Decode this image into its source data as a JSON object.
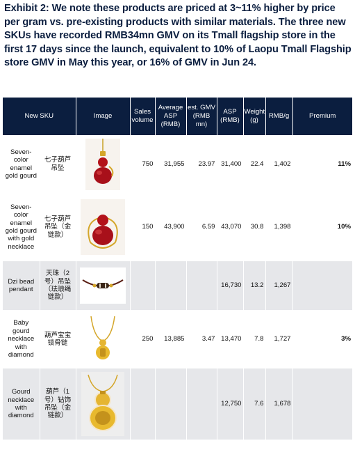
{
  "title": "Exhibit 2:  We note these products are priced at 3~11% higher by price per gram vs. pre-existing products with similar materials. The three new SKUs have recorded RMB34mn GMV on its Tmall flagship store in the first 17 days since the launch, equivalent to 10% of Laopu Tmall Flagship store GMV in May this year, or 16% of GMV in Jun 24.",
  "table": {
    "headers": {
      "new_sku": "New SKU",
      "image": "Image",
      "sales_volume": "Sales volume",
      "average_asp": "Average ASP (RMB)",
      "est_gmv": "est. GMV (RMB mn)",
      "asp": "ASP (RMB)",
      "weight": "Weight (g)",
      "rmb_per_g": "RMB/g",
      "premium": "Premium"
    },
    "rows": [
      {
        "name_en": "Seven-color enamel gold gourd",
        "name_cn": "七子葫芦吊坠",
        "image": "red-gourd-pendant-icon",
        "sales_volume": "750",
        "average_asp": "31,955",
        "est_gmv": "23.97",
        "asp": "31,400",
        "weight": "22.4",
        "rmb_per_g": "1,402",
        "premium": "11%"
      },
      {
        "name_en": "Seven-color enamel gold gourd with gold necklace",
        "name_cn": "七子葫芦吊坠（金链款）",
        "image": "red-gourd-necklace-icon",
        "sales_volume": "150",
        "average_asp": "43,900",
        "est_gmv": "6.59",
        "asp": "43,070",
        "weight": "30.8",
        "rmb_per_g": "1,398",
        "premium": "10%"
      },
      {
        "name_en": "Dzi bead pendant",
        "name_cn": "天珠（2号）吊坠（珐琅绳链款）",
        "image": "dzi-bead-icon",
        "sales_volume": "",
        "average_asp": "",
        "est_gmv": "",
        "asp": "16,730",
        "weight": "13.2",
        "rmb_per_g": "1,267",
        "premium": ""
      },
      {
        "name_en": "Baby gourd necklace with diamond",
        "name_cn": "葫芦宝宝锁骨链",
        "image": "baby-gourd-necklace-icon",
        "sales_volume": "250",
        "average_asp": "13,885",
        "est_gmv": "3.47",
        "asp": "13,470",
        "weight": "7.8",
        "rmb_per_g": "1,727",
        "premium": "3%"
      },
      {
        "name_en": "Gourd necklace with diamond",
        "name_cn": "葫芦（1号）钻饰吊坠（金链款）",
        "image": "gold-gourd-diamond-icon",
        "sales_volume": "",
        "average_asp": "",
        "est_gmv": "",
        "asp": "12,750",
        "weight": "7.6",
        "rmb_per_g": "1,678",
        "premium": ""
      }
    ]
  }
}
